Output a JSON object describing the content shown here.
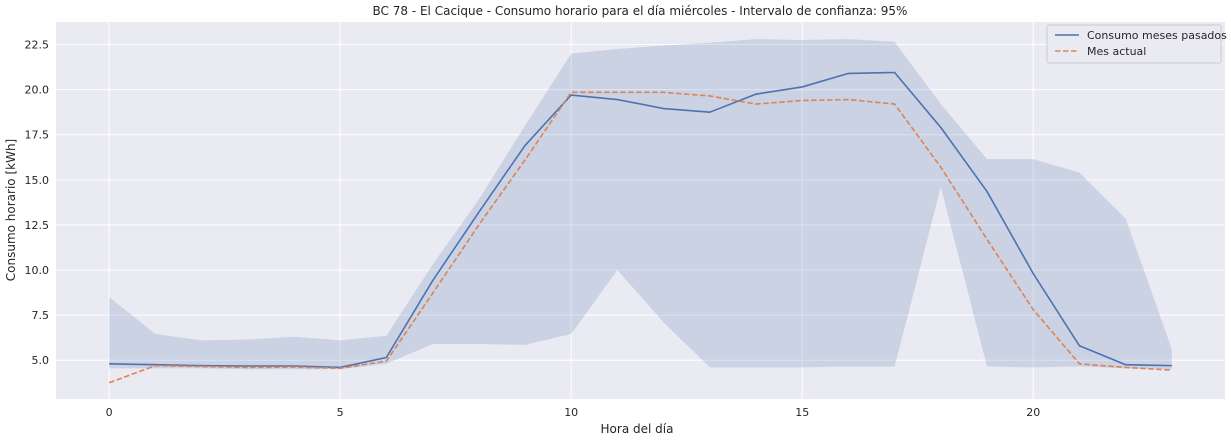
{
  "chart_data": {
    "type": "line",
    "title": "BC 78 - El Cacique - Consumo horario para el día miércoles - Intervalo de confianza: 95%",
    "xlabel": "Hora del día",
    "ylabel": "Consumo horario [kWh]",
    "xlim": [
      -1.15,
      24.15
    ],
    "ylim": [
      2.85,
      23.75
    ],
    "xticks": [
      0,
      5,
      10,
      15,
      20
    ],
    "yticks": [
      5.0,
      7.5,
      10.0,
      12.5,
      15.0,
      17.5,
      20.0,
      22.5
    ],
    "ytick_labels": [
      "5.0",
      "7.5",
      "10.0",
      "12.5",
      "15.0",
      "17.5",
      "20.0",
      "22.5"
    ],
    "grid": true,
    "legend_position": "top-right",
    "x": [
      0,
      1,
      2,
      3,
      4,
      5,
      6,
      7,
      8,
      9,
      10,
      11,
      12,
      13,
      14,
      15,
      16,
      17,
      18,
      19,
      20,
      21,
      22,
      23
    ],
    "series": [
      {
        "name": "Consumo meses pasados",
        "style": "solid",
        "color": "#4c72b0",
        "values": [
          4.8,
          4.75,
          4.7,
          4.68,
          4.68,
          4.6,
          5.15,
          9.4,
          13.2,
          16.9,
          19.7,
          19.45,
          18.95,
          18.75,
          19.75,
          20.15,
          20.9,
          20.95,
          17.9,
          14.35,
          9.8,
          5.8,
          4.75,
          4.7
        ]
      },
      {
        "name": "Mes actual",
        "style": "dashed",
        "color": "#dd8452",
        "values": [
          3.75,
          4.7,
          4.65,
          4.6,
          4.62,
          4.55,
          4.95,
          8.7,
          12.5,
          16.1,
          19.85,
          19.85,
          19.85,
          19.65,
          19.2,
          19.4,
          19.45,
          19.2,
          15.7,
          11.7,
          7.8,
          4.8,
          4.6,
          4.45
        ]
      }
    ],
    "confidence_band": {
      "series": "Consumo meses pasados",
      "color": "#4c72b0",
      "opacity": 0.2,
      "lower": [
        4.55,
        4.55,
        4.55,
        4.5,
        4.5,
        4.5,
        4.8,
        5.9,
        5.9,
        5.85,
        6.45,
        10.0,
        7.1,
        4.6,
        4.6,
        4.6,
        4.65,
        4.65,
        14.6,
        4.65,
        4.6,
        4.65,
        4.55,
        4.5
      ],
      "upper": [
        8.5,
        6.45,
        6.1,
        6.15,
        6.3,
        6.1,
        6.35,
        10.3,
        13.9,
        18.0,
        22.0,
        22.25,
        22.45,
        22.6,
        22.8,
        22.75,
        22.8,
        22.65,
        19.2,
        16.15,
        16.15,
        15.4,
        12.85,
        5.6
      ]
    }
  }
}
